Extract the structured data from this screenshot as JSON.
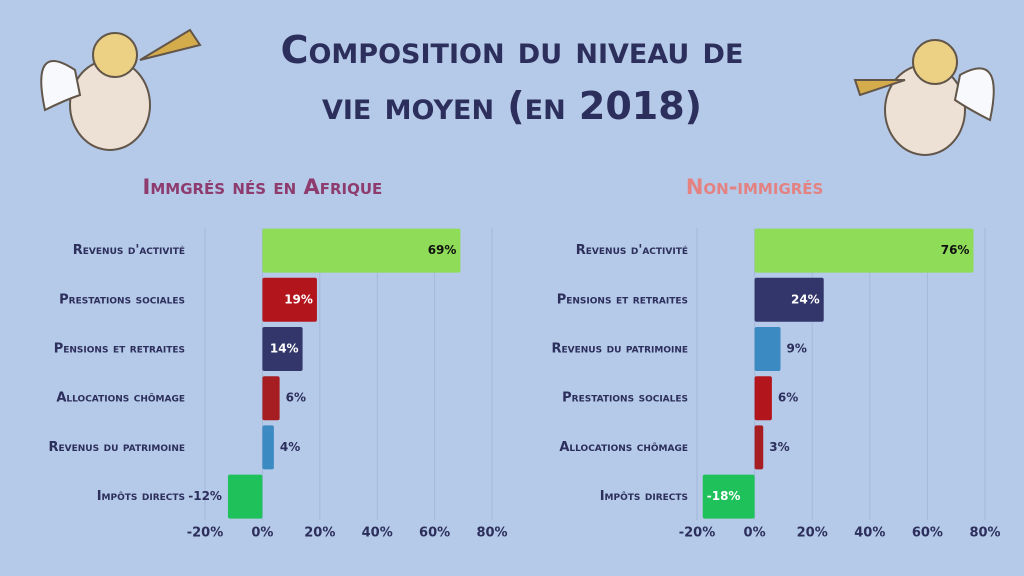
{
  "title": "Composition du niveau de vie moyen (en 2018)",
  "chart_data": [
    {
      "type": "bar",
      "orientation": "horizontal",
      "title": "Immgrés nés en Afrique",
      "title_color": "#8e3b6e",
      "categories": [
        "Revenus d'activité",
        "Prestations sociales",
        "Pensions et retraites",
        "Allocations chômage",
        "Revenus du patrimoine",
        "Impôts directs"
      ],
      "values": [
        69,
        19,
        14,
        6,
        4,
        -12
      ],
      "value_labels": [
        "69%",
        "19%",
        "14%",
        "6%",
        "4%",
        "-12%"
      ],
      "colors": [
        "#8edc58",
        "#b3151c",
        "#33366a",
        "#a61e22",
        "#3b8bc2",
        "#1fc15a"
      ],
      "xlim": [
        -20,
        80
      ],
      "xticks": [
        {
          "value": -20,
          "label": "-20%"
        },
        {
          "value": 0,
          "label": "0%"
        },
        {
          "value": 20,
          "label": "20%"
        },
        {
          "value": 40,
          "label": "40%"
        },
        {
          "value": 60,
          "label": "60%"
        },
        {
          "value": 80,
          "label": "80%"
        }
      ],
      "grid": true
    },
    {
      "type": "bar",
      "orientation": "horizontal",
      "title": "Non-immigrés",
      "title_color": "#e48282",
      "categories": [
        "Revenus d'activité",
        "Pensions et retraites",
        "Revenus du patrimoine",
        "Prestations sociales",
        "Allocations chômage",
        "Impôts directs"
      ],
      "values": [
        76,
        24,
        9,
        6,
        3,
        -18
      ],
      "value_labels": [
        "76%",
        "24%",
        "9%",
        "6%",
        "3%",
        "-18%"
      ],
      "colors": [
        "#8edc58",
        "#33366a",
        "#3b8bc2",
        "#b3151c",
        "#a61e22",
        "#1fc15a"
      ],
      "xlim": [
        -20,
        80
      ],
      "xticks": [
        {
          "value": -20,
          "label": "-20%"
        },
        {
          "value": 0,
          "label": "0%"
        },
        {
          "value": 20,
          "label": "20%"
        },
        {
          "value": 40,
          "label": "40%"
        },
        {
          "value": 60,
          "label": "60%"
        },
        {
          "value": 80,
          "label": "80%"
        }
      ],
      "grid": true
    }
  ]
}
